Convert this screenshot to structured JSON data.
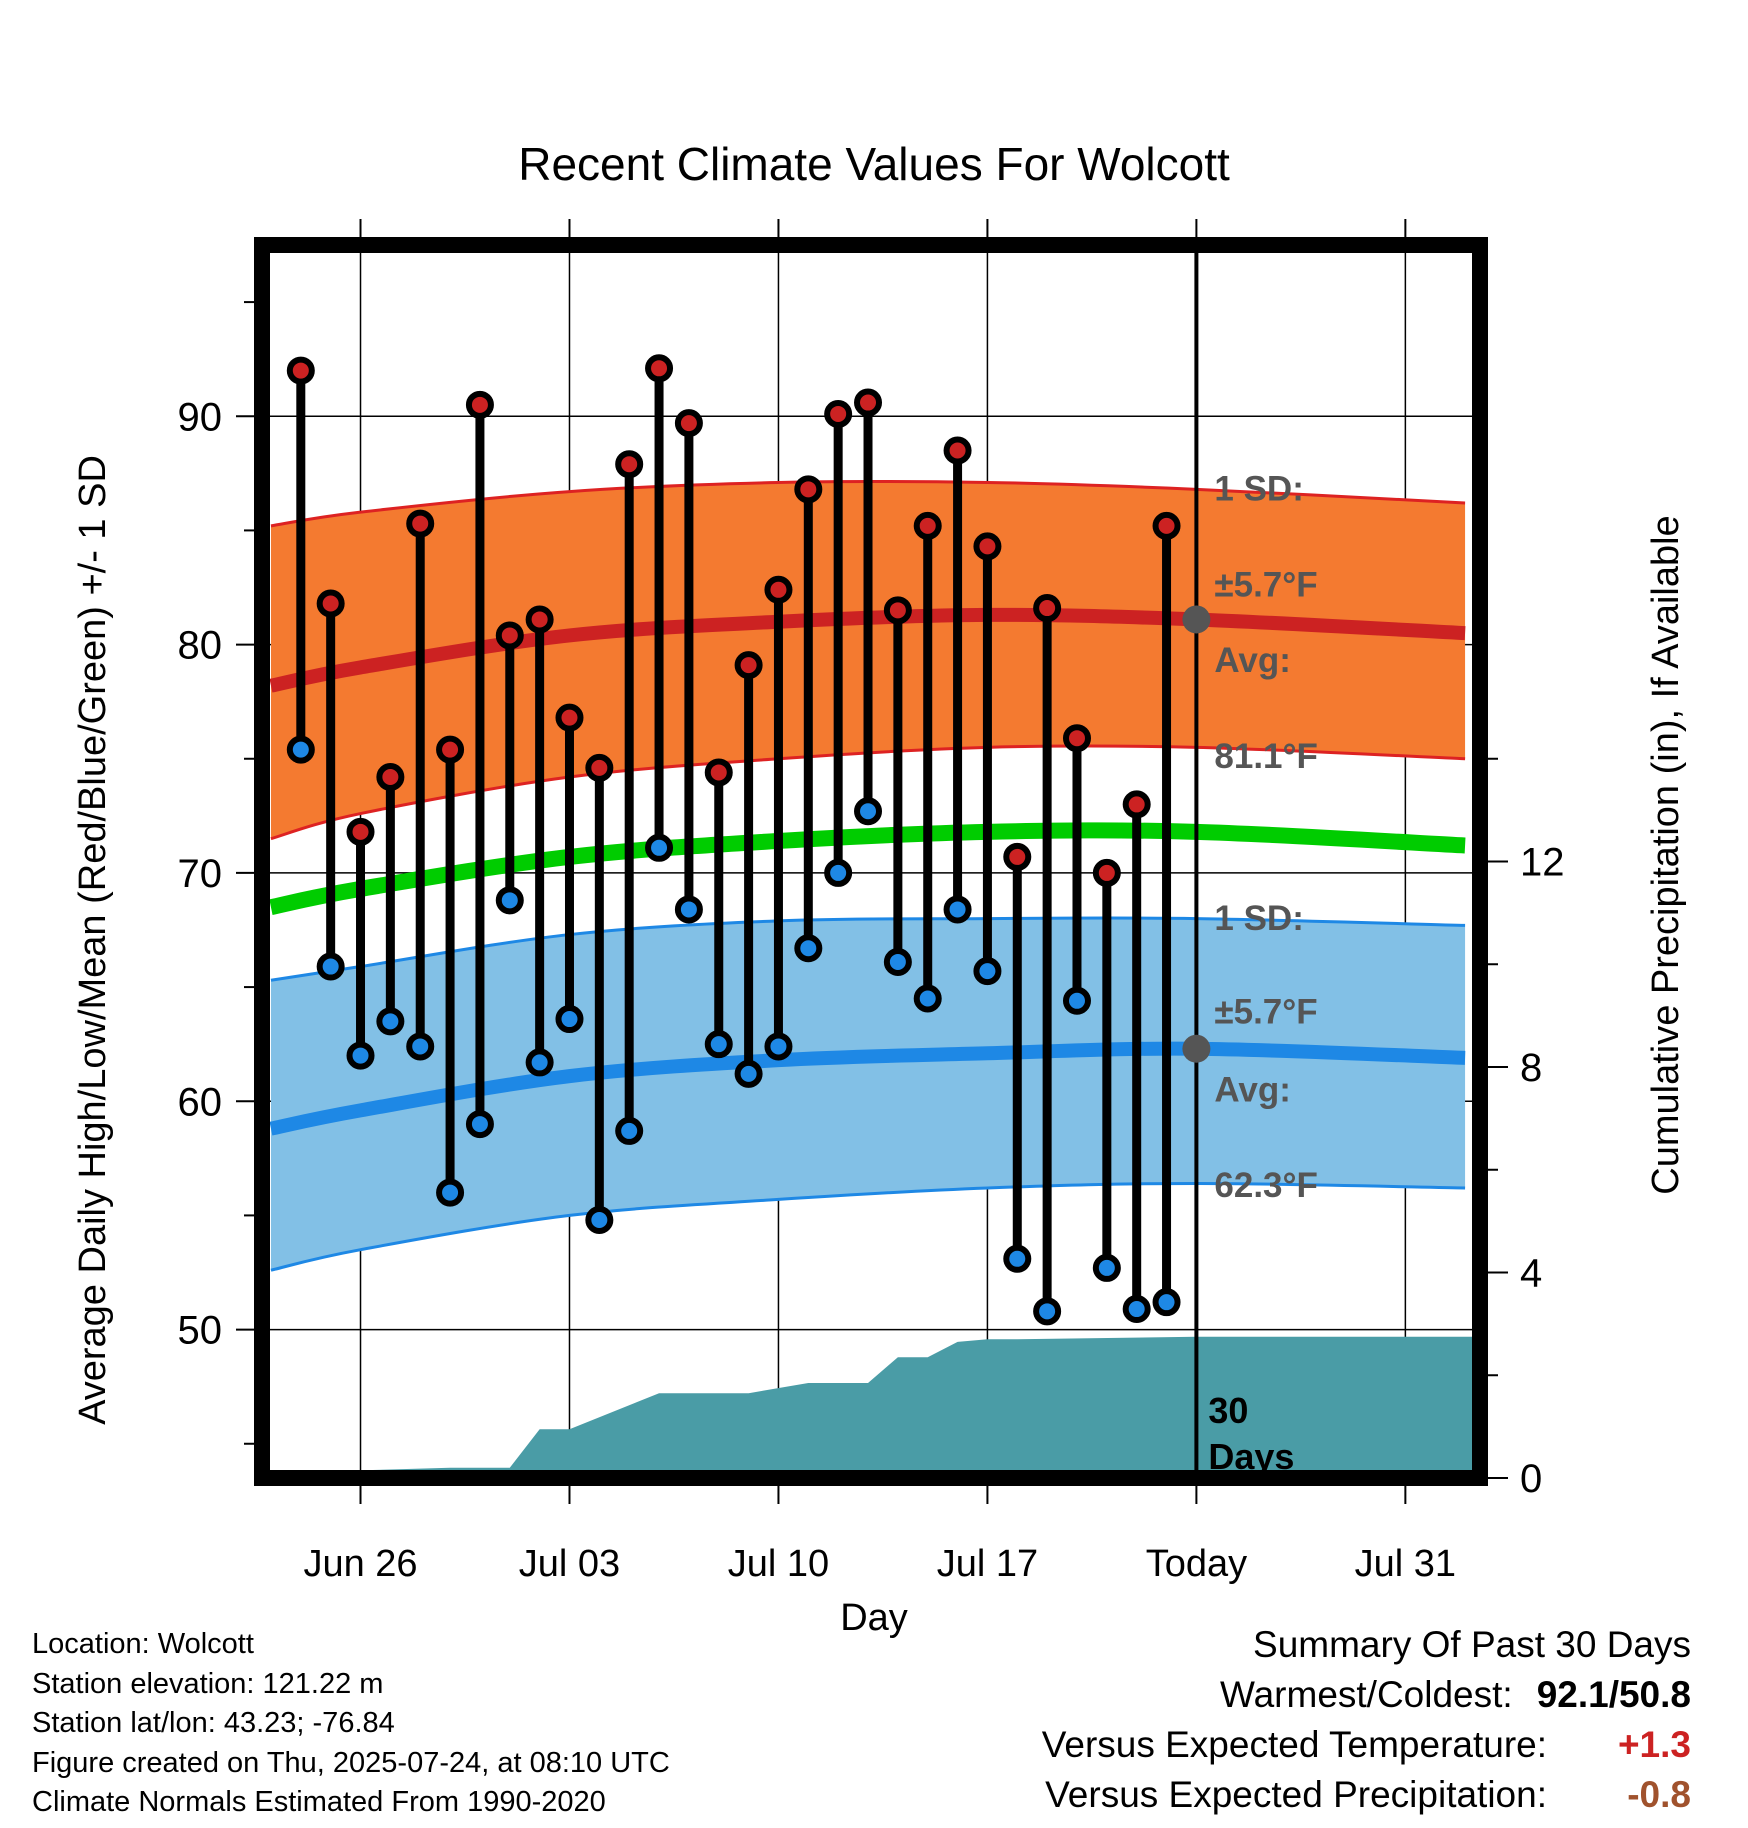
{
  "chart_data": {
    "type": "bar",
    "title": "Recent Climate Values For Wolcott",
    "xlabel": "Day",
    "ylabel": "Average Daily High/Low/Mean (Red/Blue/Green) +/- 1 SD",
    "y2label": "Cumulative Precipitation (in), If Available",
    "ylim": [
      43.5,
      97.5
    ],
    "y2lim": [
      0,
      24
    ],
    "y_ticks": [
      "50",
      "60",
      "70",
      "80",
      "90"
    ],
    "y2_ticks": [
      "0",
      "4",
      "8",
      "12"
    ],
    "x_ticks": [
      "Jun 26",
      "Jul 03",
      "Jul 10",
      "Jul 17",
      "Today",
      "Jul 31"
    ],
    "x_range_days": [
      -3.3,
      37.5
    ],
    "x_tick_days": [
      0,
      7,
      14,
      21,
      28,
      35
    ],
    "grid": true,
    "categories": [
      "Jun 24",
      "Jun 25",
      "Jun 26",
      "Jun 27",
      "Jun 28",
      "Jun 29",
      "Jun 30",
      "Jul 01",
      "Jul 02",
      "Jul 03",
      "Jul 04",
      "Jul 05",
      "Jul 06",
      "Jul 07",
      "Jul 08",
      "Jul 09",
      "Jul 10",
      "Jul 11",
      "Jul 12",
      "Jul 13",
      "Jul 14",
      "Jul 15",
      "Jul 16",
      "Jul 17",
      "Jul 18",
      "Jul 19",
      "Jul 20",
      "Jul 21",
      "Jul 22",
      "Jul 23"
    ],
    "series": [
      {
        "name": "High",
        "color": "#cc2222",
        "values": [
          92.0,
          81.8,
          71.8,
          74.2,
          85.3,
          75.4,
          90.5,
          80.4,
          81.1,
          76.8,
          74.6,
          87.9,
          92.1,
          89.7,
          74.4,
          79.1,
          82.4,
          86.8,
          90.1,
          90.6,
          81.5,
          85.2,
          88.5,
          84.3,
          70.7,
          81.6,
          75.9,
          70.0,
          73.0,
          85.2
        ]
      },
      {
        "name": "Low",
        "color": "#1e88e5",
        "values": [
          75.4,
          65.9,
          62.0,
          63.5,
          62.4,
          56.0,
          59.0,
          68.8,
          61.7,
          63.6,
          54.8,
          58.7,
          71.1,
          68.4,
          62.5,
          61.2,
          62.4,
          66.7,
          70.0,
          72.7,
          66.1,
          64.5,
          68.4,
          65.7,
          53.1,
          50.8,
          64.4,
          52.7,
          50.9,
          51.2
        ]
      }
    ],
    "normals": {
      "day": [
        -3,
        0,
        7,
        14,
        21,
        28,
        37
      ],
      "high_mean": [
        78.2,
        79.0,
        80.4,
        81.0,
        81.3,
        81.1,
        80.5
      ],
      "high_plus_sd": [
        85.2,
        85.8,
        86.7,
        87.1,
        87.1,
        86.8,
        86.2
      ],
      "high_minus_sd": [
        71.5,
        72.6,
        74.2,
        75.0,
        75.5,
        75.5,
        75.0
      ],
      "low_mean": [
        58.8,
        59.6,
        61.1,
        61.8,
        62.1,
        62.3,
        61.9
      ],
      "low_plus_sd": [
        65.3,
        65.9,
        67.3,
        67.9,
        68.0,
        68.0,
        67.7
      ],
      "low_minus_sd": [
        52.6,
        53.5,
        55.0,
        55.7,
        56.2,
        56.4,
        56.2
      ],
      "mean": [
        68.5,
        69.3,
        70.7,
        71.4,
        71.8,
        71.8,
        71.2
      ]
    },
    "precip": {
      "day": [
        -3.3,
        -2.8,
        0,
        0.1,
        3.0,
        4.0,
        5.0,
        6.0,
        7.0,
        10.0,
        11.0,
        12.0,
        13.0,
        15.0,
        16.0,
        17.0,
        18.0,
        19.0,
        20.0,
        21.0,
        22.0,
        28.0,
        37.5
      ],
      "cumulative": [
        0,
        0,
        0,
        0.15,
        0.2,
        0.2,
        0.2,
        0.95,
        0.95,
        1.65,
        1.65,
        1.65,
        1.65,
        1.85,
        1.85,
        1.85,
        2.35,
        2.35,
        2.65,
        2.7,
        2.7,
        2.75,
        2.75
      ]
    },
    "annotations": {
      "high_sd_label": "1 SD:",
      "high_sd_value": "±5.7°F",
      "high_avg_label": "Avg:",
      "high_avg_value": "81.1°F",
      "high_avg": 81.1,
      "low_sd_label": "1 SD:",
      "low_sd_value": "±5.7°F",
      "low_avg_label": "Avg:",
      "low_avg_value": "62.3°F",
      "low_avg": 62.3,
      "days_label_line1": "30",
      "days_label_line2": "Days",
      "today_day": 28
    },
    "colors": {
      "high_band": "#f47a30",
      "high_edge": "#dd2222",
      "high_mean": "#cc2222",
      "low_band": "#82c0e6",
      "low_edge": "#1e88e5",
      "low_mean": "#1e88e5",
      "mean_line": "#00cc00",
      "precip": "#4a9ca6",
      "annotation": "#555555"
    }
  },
  "meta": {
    "location": "Location: Wolcott",
    "elevation": "Station elevation: 121.22 m",
    "latlon": "Station lat/lon: 43.23; -76.84",
    "created": "Figure created on Thu, 2025-07-24, at 08:10 UTC",
    "normals": "Climate Normals Estimated From 1990-2020"
  },
  "summary": {
    "title": "Summary Of Past 30 Days",
    "warm_cold_label": "Warmest/Coldest:",
    "warm_cold_value": "92.1/50.8",
    "temp_label": "Versus Expected Temperature:",
    "temp_value": "+1.3",
    "temp_color": "#cc2222",
    "precip_label": "Versus Expected Precipitation:",
    "precip_value": "-0.8",
    "precip_color": "#a0522d"
  }
}
